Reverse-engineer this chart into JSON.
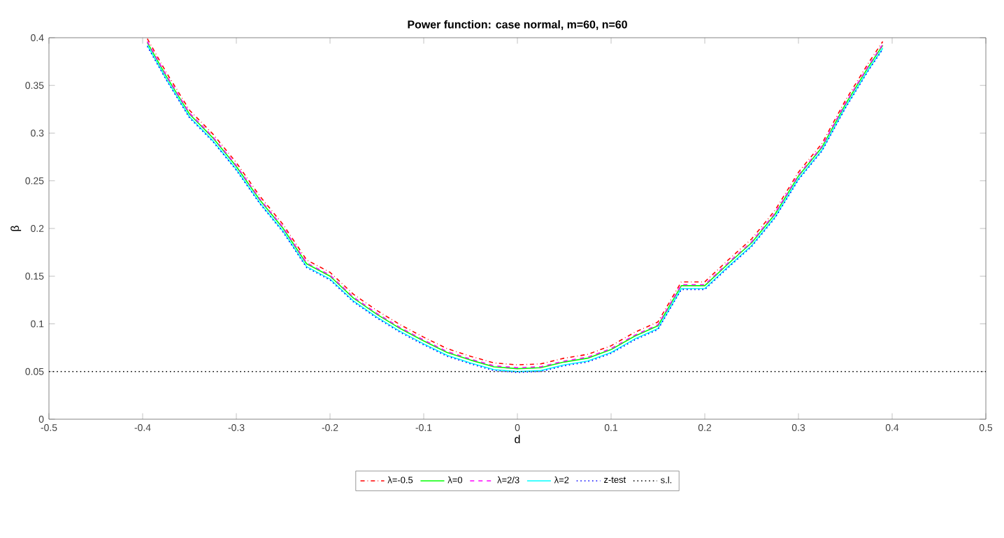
{
  "chart_data": {
    "type": "line",
    "title": "Power function: case normal, m=60, n=60",
    "xlabel": "d",
    "ylabel": "β",
    "x": [
      -0.395,
      -0.375,
      -0.35,
      -0.325,
      -0.3,
      -0.275,
      -0.25,
      -0.225,
      -0.2,
      -0.175,
      -0.15,
      -0.125,
      -0.1,
      -0.075,
      -0.05,
      -0.025,
      0,
      0.025,
      0.05,
      0.075,
      0.1,
      0.125,
      0.15,
      0.175,
      0.2,
      0.225,
      0.25,
      0.275,
      0.3,
      0.325,
      0.35,
      0.375,
      0.39
    ],
    "series": [
      {
        "name": "λ=-0.5",
        "color": "#ff0000",
        "line_style": "dashdot",
        "values": [
          0.399,
          0.364,
          0.324,
          0.299,
          0.269,
          0.234,
          0.204,
          0.167,
          0.154,
          0.131,
          0.114,
          0.099,
          0.086,
          0.074,
          0.066,
          0.059,
          0.057,
          0.058,
          0.064,
          0.068,
          0.077,
          0.091,
          0.102,
          0.144,
          0.144,
          0.167,
          0.189,
          0.219,
          0.259,
          0.289,
          0.334,
          0.374,
          0.396
        ]
      },
      {
        "name": "λ=0",
        "color": "#00ff00",
        "line_style": "solid",
        "values": [
          0.395,
          0.36,
          0.32,
          0.295,
          0.265,
          0.23,
          0.2,
          0.163,
          0.15,
          0.127,
          0.11,
          0.095,
          0.082,
          0.07,
          0.062,
          0.055,
          0.053,
          0.054,
          0.06,
          0.064,
          0.073,
          0.087,
          0.098,
          0.14,
          0.14,
          0.163,
          0.185,
          0.215,
          0.255,
          0.285,
          0.33,
          0.37,
          0.392
        ]
      },
      {
        "name": "λ=2/3",
        "color": "#ff00ff",
        "line_style": "dashed",
        "values": [
          0.396,
          0.361,
          0.321,
          0.296,
          0.266,
          0.231,
          0.201,
          0.164,
          0.151,
          0.128,
          0.111,
          0.096,
          0.083,
          0.071,
          0.063,
          0.056,
          0.054,
          0.055,
          0.061,
          0.065,
          0.074,
          0.088,
          0.099,
          0.141,
          0.141,
          0.164,
          0.186,
          0.216,
          0.256,
          0.286,
          0.331,
          0.371,
          0.393
        ]
      },
      {
        "name": "λ=2",
        "color": "#00ffff",
        "line_style": "solid",
        "values": [
          0.392,
          0.357,
          0.317,
          0.292,
          0.262,
          0.227,
          0.197,
          0.16,
          0.147,
          0.124,
          0.107,
          0.092,
          0.079,
          0.067,
          0.059,
          0.052,
          0.05,
          0.051,
          0.057,
          0.061,
          0.07,
          0.084,
          0.095,
          0.137,
          0.137,
          0.16,
          0.182,
          0.212,
          0.252,
          0.282,
          0.327,
          0.367,
          0.389
        ]
      },
      {
        "name": "z-test",
        "color": "#0000ff",
        "line_style": "dotted",
        "values": [
          0.391,
          0.356,
          0.316,
          0.291,
          0.261,
          0.226,
          0.196,
          0.159,
          0.146,
          0.123,
          0.106,
          0.091,
          0.078,
          0.066,
          0.058,
          0.051,
          0.049,
          0.05,
          0.056,
          0.06,
          0.069,
          0.083,
          0.094,
          0.136,
          0.136,
          0.159,
          0.181,
          0.211,
          0.251,
          0.281,
          0.326,
          0.366,
          0.388
        ]
      },
      {
        "name": "s.l.",
        "color": "#000000",
        "line_style": "dotted",
        "x": [
          -0.5,
          0.5
        ],
        "values": [
          0.05,
          0.05
        ]
      }
    ],
    "xlim": [
      -0.5,
      0.5
    ],
    "ylim": [
      0,
      0.4
    ],
    "xticks": [
      -0.5,
      -0.4,
      -0.3,
      -0.2,
      -0.1,
      0,
      0.1,
      0.2,
      0.3,
      0.4,
      0.5
    ],
    "yticks": [
      0,
      0.05,
      0.1,
      0.15,
      0.2,
      0.25,
      0.3,
      0.35,
      0.4
    ],
    "grid": false,
    "legend": "bottom",
    "marker": "none"
  }
}
